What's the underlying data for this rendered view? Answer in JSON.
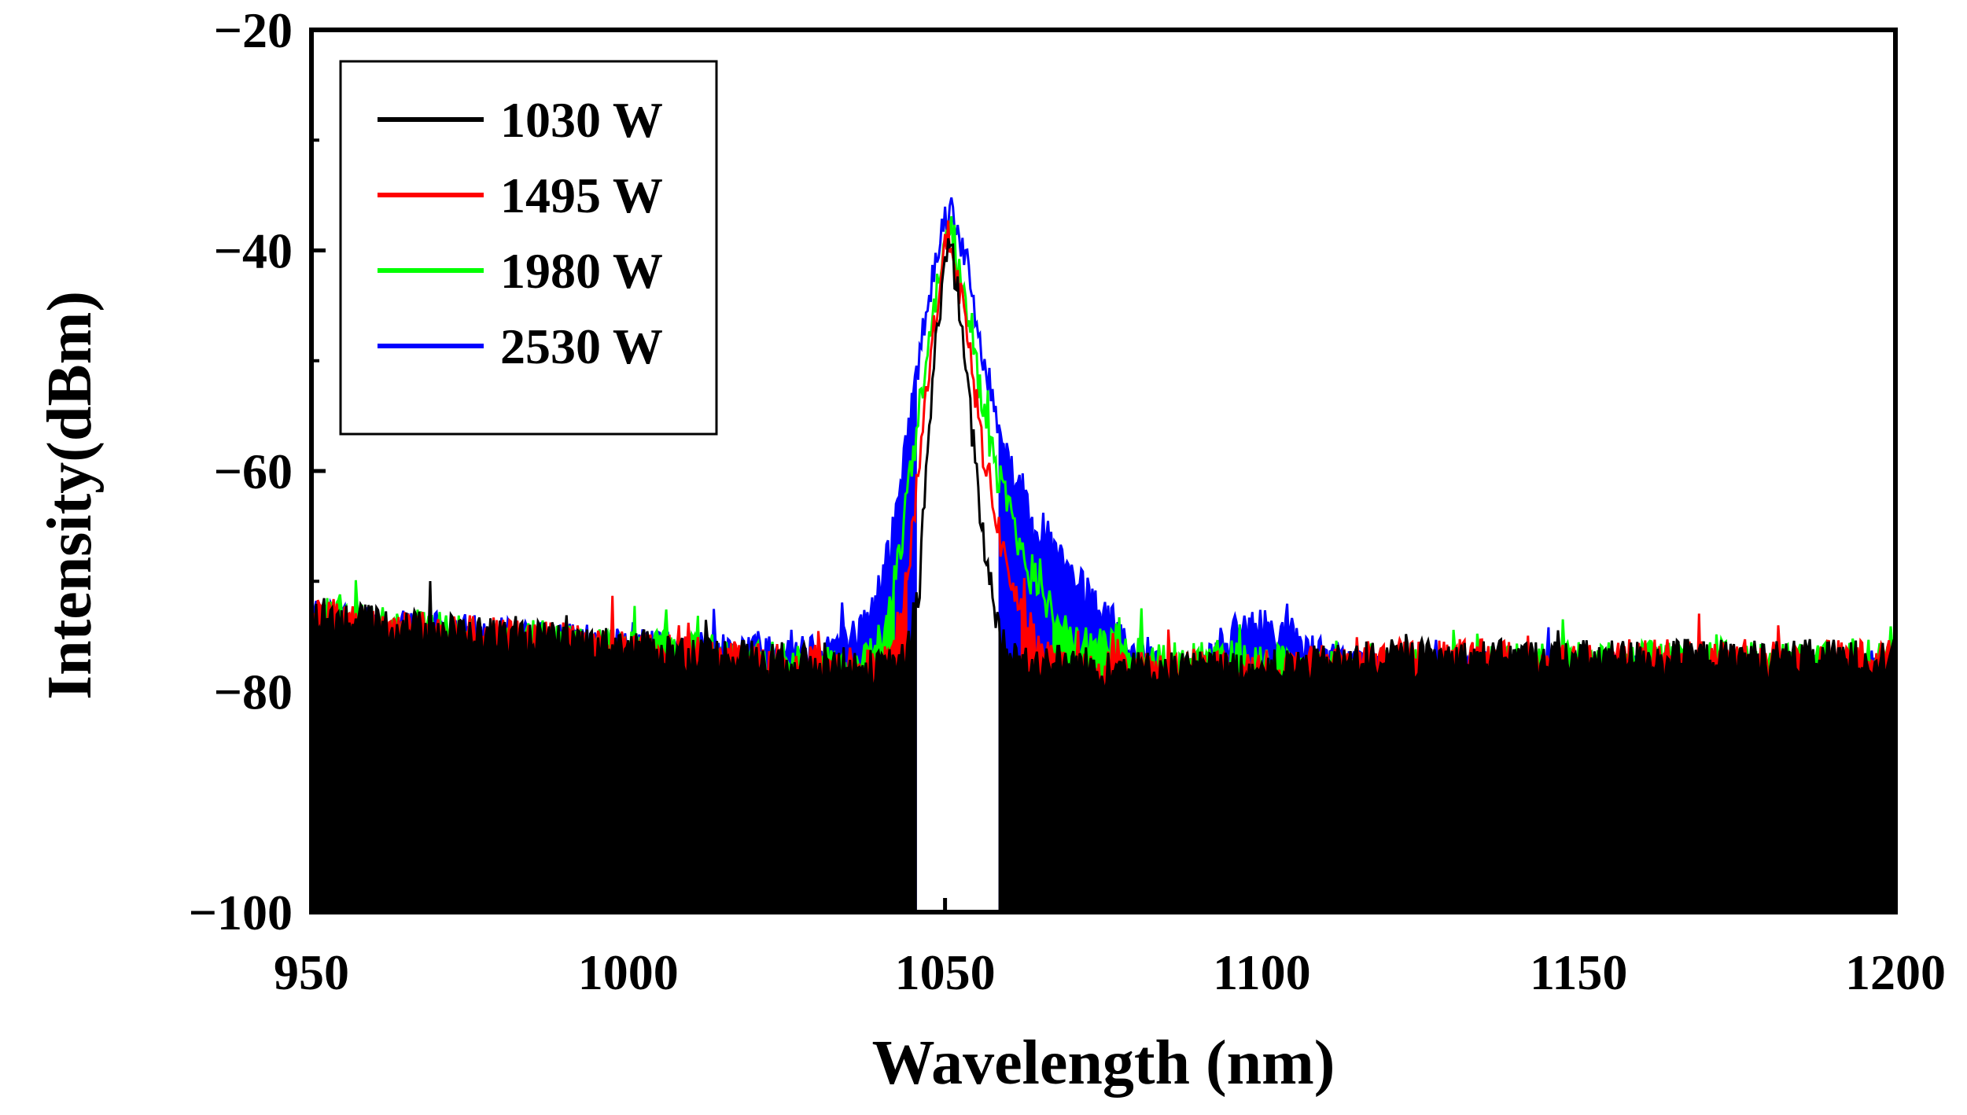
{
  "chart_data": {
    "type": "line",
    "title": "",
    "xlabel": "Wavelength (nm)",
    "ylabel": "Intensity(dBm)",
    "xlim": [
      950,
      1200
    ],
    "ylim": [
      -100,
      -20
    ],
    "xticks": [
      950,
      1000,
      1050,
      1100,
      1150,
      1200
    ],
    "yticks": [
      -20,
      -40,
      -60,
      -80,
      -100
    ],
    "ytick_labels": [
      "−20",
      "−40",
      "−60",
      "−80",
      "−100"
    ],
    "legend_position": "top-left",
    "grid": false,
    "series": [
      {
        "name": "1030 W",
        "color": "#000000",
        "x": [
          950,
          960,
          980,
          1000,
          1020,
          1040,
          1044,
          1046,
          1048,
          1050,
          1051,
          1052,
          1054,
          1056,
          1058,
          1060,
          1080,
          1100,
          1120,
          1150,
          1200
        ],
        "y": [
          -73,
          -74,
          -75,
          -76,
          -77,
          -78,
          -77,
          -70,
          -52,
          -40,
          -40,
          -44,
          -55,
          -66,
          -73,
          -77,
          -78,
          -78,
          -77,
          -77,
          -77
        ],
        "noise_floor_gap_nm": [
          1045.5,
          1058.5
        ]
      },
      {
        "name": "1495 W",
        "color": "#ff0000",
        "x": [
          950,
          960,
          980,
          1000,
          1020,
          1040,
          1042,
          1044,
          1047,
          1050,
          1051,
          1053,
          1056,
          1059,
          1062,
          1065,
          1068,
          1080,
          1100,
          1120,
          1150,
          1200
        ],
        "y": [
          -73,
          -74,
          -75,
          -76,
          -77,
          -78,
          -76,
          -70,
          -53,
          -39,
          -39,
          -46,
          -58,
          -67,
          -73,
          -76,
          -78,
          -78,
          -78,
          -77,
          -77,
          -77
        ],
        "noise_floor_gap_nm": [
          1044,
          1062
        ]
      },
      {
        "name": "1980 W",
        "color": "#00ff00",
        "x": [
          950,
          960,
          980,
          1000,
          1020,
          1036,
          1040,
          1043,
          1047,
          1050,
          1051,
          1054,
          1058,
          1062,
          1066,
          1070,
          1075,
          1085,
          1095,
          1100,
          1106,
          1120,
          1150,
          1200
        ],
        "y": [
          -73,
          -74,
          -75,
          -76,
          -77,
          -78,
          -75,
          -67,
          -50,
          -38,
          -38,
          -48,
          -60,
          -67,
          -72,
          -75,
          -76,
          -77,
          -77,
          -77,
          -78,
          -78,
          -77,
          -77
        ],
        "noise_floor_gap_nm": [
          1042,
          1067
        ]
      },
      {
        "name": "2530 W",
        "color": "#0000ff",
        "x": [
          950,
          960,
          980,
          1000,
          1020,
          1030,
          1036,
          1039,
          1042,
          1045,
          1048,
          1050,
          1051,
          1053,
          1056,
          1060,
          1064,
          1068,
          1072,
          1076,
          1080,
          1085,
          1090,
          1095,
          1100,
          1105,
          1110,
          1120,
          1150,
          1200
        ],
        "y": [
          -73,
          -74,
          -75,
          -76,
          -76,
          -76,
          -75,
          -72,
          -65,
          -53,
          -42,
          -37,
          -36,
          -40,
          -50,
          -59,
          -64,
          -68,
          -71,
          -74,
          -76,
          -78,
          -78,
          -75,
          -74,
          -75,
          -77,
          -78,
          -78,
          -78
        ],
        "noise_floor_gap_nm": [
          1045.5,
          1058.5
        ]
      }
    ]
  }
}
